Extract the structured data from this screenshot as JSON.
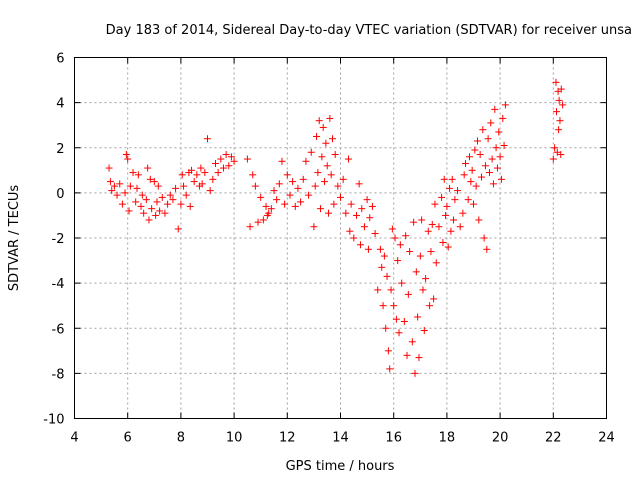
{
  "chart_data": {
    "type": "scatter",
    "title": "Day 183 of 2014, Sidereal Day-to-day VTEC variation (SDTVAR) for receiver unsa",
    "xlabel": "GPS time / hours",
    "ylabel": "SDTVAR / TECUs",
    "xlim": [
      4,
      24
    ],
    "ylim": [
      -10,
      6
    ],
    "xticks": [
      4,
      6,
      8,
      10,
      12,
      14,
      16,
      18,
      20,
      22,
      24
    ],
    "yticks": [
      -10,
      -8,
      -6,
      -4,
      -2,
      0,
      2,
      4,
      6
    ],
    "grid": true,
    "marker": "+",
    "color": "#ff0000",
    "series": [
      {
        "name": "SDTVAR",
        "points": [
          [
            5.3,
            1.1
          ],
          [
            5.35,
            0.5
          ],
          [
            5.4,
            0.1
          ],
          [
            5.5,
            0.3
          ],
          [
            5.6,
            -0.1
          ],
          [
            5.7,
            0.4
          ],
          [
            5.8,
            -0.5
          ],
          [
            5.9,
            0.0
          ],
          [
            5.95,
            1.7
          ],
          [
            6.0,
            1.5
          ],
          [
            6.05,
            -0.8
          ],
          [
            6.1,
            0.3
          ],
          [
            6.2,
            0.9
          ],
          [
            6.3,
            -0.4
          ],
          [
            6.35,
            0.2
          ],
          [
            6.4,
            0.8
          ],
          [
            6.5,
            -0.6
          ],
          [
            6.55,
            -0.1
          ],
          [
            6.6,
            -0.9
          ],
          [
            6.7,
            -0.3
          ],
          [
            6.75,
            1.1
          ],
          [
            6.8,
            -1.2
          ],
          [
            6.85,
            0.6
          ],
          [
            6.9,
            -0.7
          ],
          [
            7.0,
            0.5
          ],
          [
            7.05,
            -1.0
          ],
          [
            7.1,
            -0.4
          ],
          [
            7.15,
            0.3
          ],
          [
            7.2,
            -0.8
          ],
          [
            7.3,
            -0.2
          ],
          [
            7.4,
            -0.9
          ],
          [
            7.5,
            -0.5
          ],
          [
            7.6,
            -0.1
          ],
          [
            7.7,
            -0.3
          ],
          [
            7.8,
            0.2
          ],
          [
            7.9,
            -1.6
          ],
          [
            8.0,
            -0.5
          ],
          [
            8.05,
            0.8
          ],
          [
            8.1,
            0.3
          ],
          [
            8.2,
            -0.1
          ],
          [
            8.3,
            0.9
          ],
          [
            8.35,
            -0.6
          ],
          [
            8.4,
            1.0
          ],
          [
            8.5,
            0.5
          ],
          [
            8.6,
            0.8
          ],
          [
            8.7,
            0.3
          ],
          [
            8.75,
            1.1
          ],
          [
            8.8,
            0.4
          ],
          [
            8.9,
            0.9
          ],
          [
            9.0,
            2.4
          ],
          [
            9.1,
            0.1
          ],
          [
            9.2,
            0.6
          ],
          [
            9.3,
            1.3
          ],
          [
            9.4,
            0.9
          ],
          [
            9.5,
            1.5
          ],
          [
            9.6,
            1.1
          ],
          [
            9.7,
            1.7
          ],
          [
            9.8,
            1.2
          ],
          [
            9.9,
            1.6
          ],
          [
            10.0,
            1.4
          ],
          [
            10.5,
            1.5
          ],
          [
            10.6,
            -1.5
          ],
          [
            10.7,
            0.8
          ],
          [
            10.8,
            0.3
          ],
          [
            10.9,
            -1.3
          ],
          [
            11.0,
            -0.2
          ],
          [
            11.1,
            -1.2
          ],
          [
            11.2,
            -0.6
          ],
          [
            11.25,
            -1.0
          ],
          [
            11.3,
            -0.9
          ],
          [
            11.4,
            -0.7
          ],
          [
            11.5,
            0.1
          ],
          [
            11.6,
            -0.3
          ],
          [
            11.7,
            0.4
          ],
          [
            11.8,
            1.4
          ],
          [
            11.9,
            -0.5
          ],
          [
            12.0,
            0.8
          ],
          [
            12.1,
            -0.1
          ],
          [
            12.2,
            0.5
          ],
          [
            12.3,
            -0.6
          ],
          [
            12.4,
            0.2
          ],
          [
            12.5,
            -0.4
          ],
          [
            12.6,
            0.6
          ],
          [
            12.7,
            1.4
          ],
          [
            12.8,
            -0.1
          ],
          [
            12.9,
            1.8
          ],
          [
            13.0,
            -1.5
          ],
          [
            13.05,
            0.3
          ],
          [
            13.1,
            2.5
          ],
          [
            13.15,
            0.9
          ],
          [
            13.2,
            3.2
          ],
          [
            13.25,
            -0.7
          ],
          [
            13.3,
            1.6
          ],
          [
            13.35,
            2.9
          ],
          [
            13.4,
            0.5
          ],
          [
            13.45,
            2.2
          ],
          [
            13.5,
            1.2
          ],
          [
            13.55,
            -0.9
          ],
          [
            13.6,
            3.3
          ],
          [
            13.65,
            0.8
          ],
          [
            13.7,
            2.4
          ],
          [
            13.75,
            -0.5
          ],
          [
            13.8,
            1.7
          ],
          [
            13.9,
            0.3
          ],
          [
            14.0,
            -0.2
          ],
          [
            14.1,
            0.6
          ],
          [
            14.2,
            -0.9
          ],
          [
            14.3,
            1.5
          ],
          [
            14.35,
            -1.7
          ],
          [
            14.4,
            -0.5
          ],
          [
            14.5,
            -2.0
          ],
          [
            14.6,
            -1.0
          ],
          [
            14.7,
            0.4
          ],
          [
            14.75,
            -2.3
          ],
          [
            14.8,
            -0.7
          ],
          [
            14.9,
            -1.5
          ],
          [
            15.0,
            -0.3
          ],
          [
            15.05,
            -2.5
          ],
          [
            15.1,
            -1.1
          ],
          [
            15.2,
            -0.6
          ],
          [
            15.3,
            -1.8
          ],
          [
            15.4,
            -4.3
          ],
          [
            15.5,
            -2.5
          ],
          [
            15.55,
            -3.3
          ],
          [
            15.6,
            -5.0
          ],
          [
            15.65,
            -2.8
          ],
          [
            15.7,
            -6.0
          ],
          [
            15.75,
            -3.7
          ],
          [
            15.8,
            -7.0
          ],
          [
            15.85,
            -7.8
          ],
          [
            15.9,
            -4.3
          ],
          [
            15.95,
            -1.6
          ],
          [
            16.0,
            -5.0
          ],
          [
            16.05,
            -2.0
          ],
          [
            16.1,
            -5.6
          ],
          [
            16.15,
            -3.0
          ],
          [
            16.2,
            -6.2
          ],
          [
            16.25,
            -2.3
          ],
          [
            16.3,
            -4.0
          ],
          [
            16.4,
            -5.7
          ],
          [
            16.45,
            -1.9
          ],
          [
            16.5,
            -7.2
          ],
          [
            16.55,
            -4.5
          ],
          [
            16.6,
            -2.6
          ],
          [
            16.7,
            -6.6
          ],
          [
            16.75,
            -1.3
          ],
          [
            16.8,
            -8.0
          ],
          [
            16.85,
            -3.5
          ],
          [
            16.9,
            -5.5
          ],
          [
            16.95,
            -7.3
          ],
          [
            17.0,
            -2.8
          ],
          [
            17.05,
            -1.2
          ],
          [
            17.1,
            -4.3
          ],
          [
            17.15,
            -6.1
          ],
          [
            17.2,
            -3.8
          ],
          [
            17.3,
            -1.7
          ],
          [
            17.35,
            -5.0
          ],
          [
            17.4,
            -2.6
          ],
          [
            17.45,
            -1.4
          ],
          [
            17.5,
            -4.7
          ],
          [
            17.55,
            -0.5
          ],
          [
            17.6,
            -3.1
          ],
          [
            17.7,
            -1.5
          ],
          [
            17.8,
            -0.2
          ],
          [
            17.85,
            -2.2
          ],
          [
            17.9,
            0.6
          ],
          [
            17.95,
            -1.0
          ],
          [
            18.0,
            -0.6
          ],
          [
            18.05,
            -2.4
          ],
          [
            18.1,
            0.2
          ],
          [
            18.15,
            -1.7
          ],
          [
            18.2,
            0.6
          ],
          [
            18.25,
            -1.2
          ],
          [
            18.3,
            -0.3
          ],
          [
            18.4,
            0.1
          ],
          [
            18.5,
            -1.5
          ],
          [
            18.6,
            -0.9
          ],
          [
            18.65,
            0.8
          ],
          [
            18.7,
            1.3
          ],
          [
            18.8,
            -0.3
          ],
          [
            18.85,
            1.6
          ],
          [
            18.9,
            0.5
          ],
          [
            18.95,
            1.0
          ],
          [
            19.0,
            -0.5
          ],
          [
            19.05,
            1.9
          ],
          [
            19.1,
            0.3
          ],
          [
            19.15,
            2.3
          ],
          [
            19.2,
            -1.2
          ],
          [
            19.25,
            1.7
          ],
          [
            19.3,
            0.7
          ],
          [
            19.35,
            2.8
          ],
          [
            19.4,
            -2.0
          ],
          [
            19.45,
            1.2
          ],
          [
            19.5,
            -2.5
          ],
          [
            19.55,
            2.4
          ],
          [
            19.6,
            0.9
          ],
          [
            19.65,
            3.1
          ],
          [
            19.7,
            1.5
          ],
          [
            19.75,
            0.4
          ],
          [
            19.8,
            3.7
          ],
          [
            19.85,
            2.0
          ],
          [
            19.9,
            1.1
          ],
          [
            19.95,
            2.7
          ],
          [
            20.0,
            1.6
          ],
          [
            20.05,
            0.6
          ],
          [
            20.1,
            3.3
          ],
          [
            20.15,
            2.1
          ],
          [
            20.2,
            3.9
          ],
          [
            22.0,
            1.5
          ],
          [
            22.05,
            2.0
          ],
          [
            22.1,
            4.9
          ],
          [
            22.12,
            3.6
          ],
          [
            22.15,
            1.8
          ],
          [
            22.18,
            4.5
          ],
          [
            22.2,
            2.8
          ],
          [
            22.22,
            4.1
          ],
          [
            22.25,
            3.2
          ],
          [
            22.28,
            1.7
          ],
          [
            22.3,
            4.6
          ],
          [
            22.35,
            3.9
          ]
        ]
      }
    ]
  }
}
